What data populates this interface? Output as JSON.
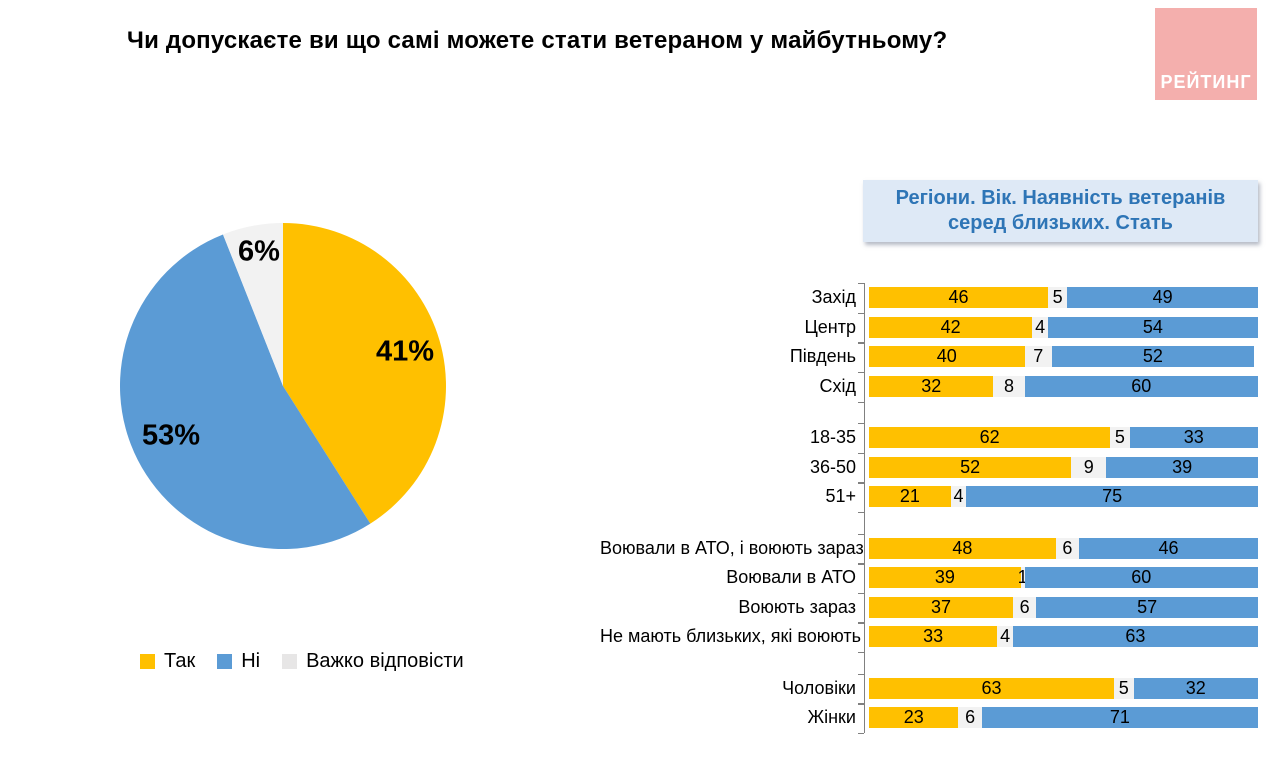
{
  "title": "Чи допускаєте ви що самі можете стати ветераном у майбутньому?",
  "logo": {
    "text": "РЕЙТИНГ",
    "bg_color": "#F4AFAD",
    "text_color": "#FFFFFF"
  },
  "colors": {
    "yes": "#FFC000",
    "no": "#5B9BD5",
    "dk": "#F2F2F2",
    "header_bg": "#DEE9F6",
    "header_text": "#2E75B6",
    "axis": "#808080"
  },
  "legend": {
    "items": [
      {
        "label": "Так",
        "color": "#FFC000"
      },
      {
        "label": "Ні",
        "color": "#5B9BD5"
      },
      {
        "label": "Важко відповісти",
        "color": "#E7E6E6"
      }
    ]
  },
  "bar_header": {
    "line1": "Регіони. Вік. Наявність ветеранів",
    "line2": "серед близьких. Стать"
  },
  "chart_data": [
    {
      "type": "pie",
      "title": "Чи допускаєте ви що самі можете стати ветераном у майбутньому?",
      "labels": [
        "Так",
        "Ні",
        "Важко відповісти"
      ],
      "values": [
        41,
        53,
        6
      ],
      "display_labels": [
        "41%",
        "53%",
        "6%"
      ],
      "colors": [
        "#FFC000",
        "#5B9BD5",
        "#F2F2F2"
      ],
      "start_angle_deg": -90,
      "direction": "clockwise",
      "legend_position": "bottom-left"
    },
    {
      "type": "bar",
      "stacked": true,
      "orientation": "horizontal",
      "title": "Регіони. Вік. Наявність ветеранів серед близьких. Стать",
      "series": [
        "Так",
        "Важко відповісти",
        "Ні"
      ],
      "series_colors": [
        "#FFC000",
        "#F2F2F2",
        "#5B9BD5"
      ],
      "xlim": [
        0,
        100
      ],
      "grid": false,
      "groups": [
        {
          "rows": [
            {
              "label": "Захід",
              "values": [
                46,
                5,
                49
              ]
            },
            {
              "label": "Центр",
              "values": [
                42,
                4,
                54
              ]
            },
            {
              "label": "Південь",
              "values": [
                40,
                7,
                52
              ]
            },
            {
              "label": "Схід",
              "values": [
                32,
                8,
                60
              ]
            }
          ]
        },
        {
          "rows": [
            {
              "label": "18-35",
              "values": [
                62,
                5,
                33
              ]
            },
            {
              "label": "36-50",
              "values": [
                52,
                9,
                39
              ]
            },
            {
              "label": "51+",
              "values": [
                21,
                4,
                75
              ]
            }
          ]
        },
        {
          "rows": [
            {
              "label": "Воювали в АТО, і воюють зараз",
              "values": [
                48,
                6,
                46
              ]
            },
            {
              "label": "Воювали в АТО",
              "values": [
                39,
                1,
                60
              ]
            },
            {
              "label": "Воюють зараз",
              "values": [
                37,
                6,
                57
              ]
            },
            {
              "label": "Не мають близьких, які воюють",
              "values": [
                33,
                4,
                63
              ]
            }
          ]
        },
        {
          "rows": [
            {
              "label": "Чоловіки",
              "values": [
                63,
                5,
                32
              ]
            },
            {
              "label": "Жінки",
              "values": [
                23,
                6,
                71
              ]
            }
          ]
        }
      ]
    }
  ]
}
